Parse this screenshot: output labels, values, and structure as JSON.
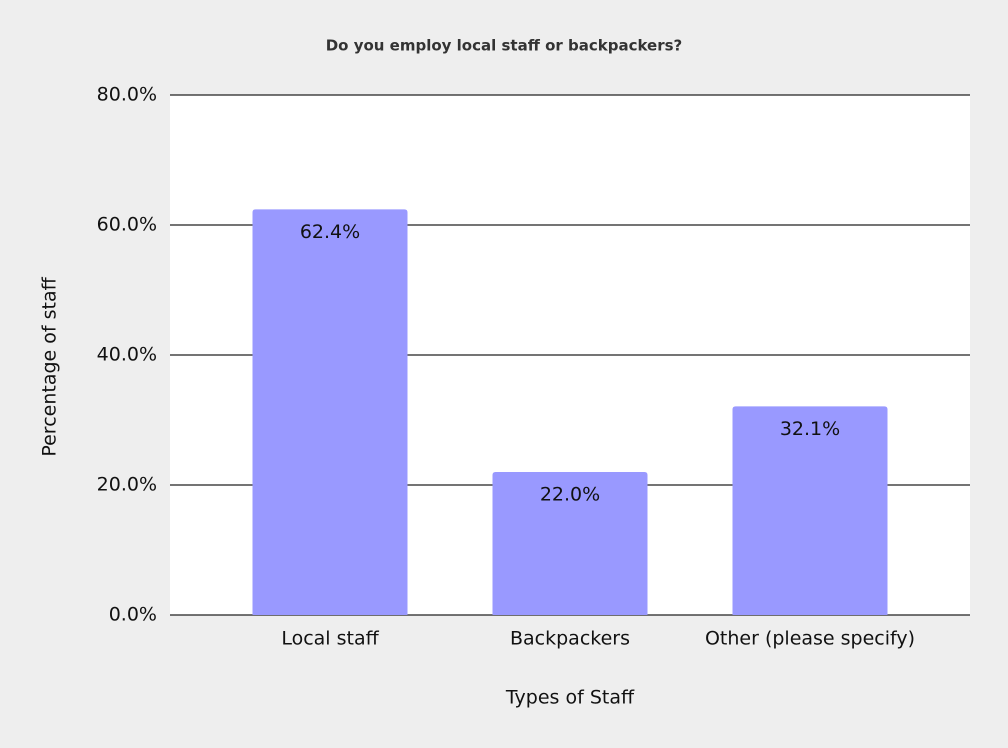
{
  "chart_data": {
    "type": "bar",
    "title": "Do you employ local staff or backpackers?",
    "x_label": "Types of Staff",
    "y_label": "Percentage of staff",
    "categories": [
      "Local staff",
      "Backpackers",
      "Other (please specify)"
    ],
    "values": [
      62.4,
      22.0,
      32.1
    ],
    "value_labels": [
      "62.4%",
      "22.0%",
      "32.1%"
    ],
    "color": "#9999ff",
    "ylim": [
      0,
      80
    ],
    "yticks": [
      {
        "value": 0,
        "label": "0.0%"
      },
      {
        "value": 20,
        "label": "20.0%"
      },
      {
        "value": 40,
        "label": "40.0%"
      },
      {
        "value": 60,
        "label": "60.0%"
      },
      {
        "value": 80,
        "label": "80.0%"
      }
    ],
    "grid": true
  }
}
